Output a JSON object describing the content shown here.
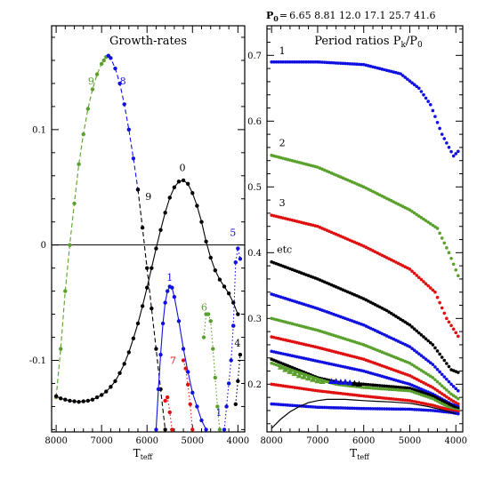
{
  "header": {
    "p0_label": "P",
    "p0_sub": "0",
    "p0_eq": "=",
    "p0_values": "6.65  8.81  12.0  17.1  25.7  41.6"
  },
  "colors": {
    "black": "#000000",
    "blue": "#1010e0",
    "green": "#5aa02c",
    "red": "#e01010"
  },
  "chart_data": [
    {
      "type": "line",
      "title": "Growth-rates",
      "xlabel": "T",
      "xlabel_sub": "teff",
      "xlim": [
        8100,
        3850
      ],
      "ylim": [
        -0.162,
        0.19
      ],
      "xticks": [
        8000,
        7000,
        6000,
        5000,
        4000
      ],
      "yticks": [
        0.1,
        0,
        -0.1
      ],
      "ytick_labels": [
        "0.1",
        "0",
        "-0.1"
      ],
      "zero_line": true,
      "series": [
        {
          "color": "#5aa02c",
          "style": "dashed",
          "name": "9",
          "x": [
            8000,
            7900,
            7800,
            7700,
            7600,
            7500,
            7400,
            7300,
            7200,
            7100,
            7000,
            6950,
            6900,
            6850
          ],
          "y": [
            -0.132,
            -0.09,
            -0.04,
            0.0,
            0.036,
            0.07,
            0.096,
            0.118,
            0.135,
            0.148,
            0.157,
            0.16,
            0.163,
            0.164
          ]
        },
        {
          "color": "#1010e0",
          "style": "dashed",
          "name": "8",
          "x": [
            6850,
            6800,
            6700,
            6600,
            6500,
            6400,
            6300,
            6200
          ],
          "y": [
            0.164,
            0.162,
            0.153,
            0.14,
            0.122,
            0.1,
            0.075,
            0.048
          ]
        },
        {
          "color": "#000000",
          "style": "dashed",
          "name": "9",
          "x": [
            6200,
            6100,
            6000,
            5900,
            5800,
            5700,
            5600
          ],
          "y": [
            0.048,
            0.015,
            -0.02,
            -0.055,
            -0.09,
            -0.125,
            -0.16
          ]
        },
        {
          "color": "#000000",
          "style": "solid",
          "name": "0",
          "x": [
            8000,
            7900,
            7800,
            7700,
            7600,
            7500,
            7400,
            7300,
            7200,
            7100,
            7000,
            6900,
            6800,
            6700,
            6600,
            6500,
            6400,
            6300,
            6200,
            6100,
            6000,
            5900,
            5800,
            5700,
            5600,
            5500,
            5400,
            5300,
            5200,
            5100,
            5000,
            4900,
            4800,
            4700,
            4600,
            4500,
            4400,
            4300,
            4200,
            4100,
            4000
          ],
          "y": [
            -0.131,
            -0.133,
            -0.134,
            -0.135,
            -0.1355,
            -0.136,
            -0.1355,
            -0.135,
            -0.134,
            -0.132,
            -0.13,
            -0.127,
            -0.123,
            -0.118,
            -0.111,
            -0.103,
            -0.093,
            -0.081,
            -0.068,
            -0.053,
            -0.037,
            -0.02,
            -0.003,
            0.013,
            0.028,
            0.041,
            0.05,
            0.055,
            0.056,
            0.053,
            0.045,
            0.034,
            0.02,
            0.003,
            -0.011,
            -0.022,
            -0.03,
            -0.036,
            -0.042,
            -0.05,
            -0.06
          ]
        },
        {
          "color": "#1010e0",
          "style": "solid",
          "name": "1",
          "x": [
            5800,
            5750,
            5700,
            5650,
            5600,
            5550,
            5500,
            5450,
            5400,
            5300,
            5200,
            5100,
            5000,
            4900,
            4800,
            4700
          ],
          "y": [
            -0.16,
            -0.125,
            -0.095,
            -0.068,
            -0.05,
            -0.04,
            -0.036,
            -0.037,
            -0.045,
            -0.066,
            -0.09,
            -0.11,
            -0.128,
            -0.14,
            -0.152,
            -0.16
          ]
        },
        {
          "color": "#e01010",
          "style": "dotted",
          "name": "7",
          "x": [
            5200,
            5150,
            5100,
            5050,
            5000
          ],
          "y": [
            -0.1,
            -0.107,
            -0.121,
            -0.138,
            -0.16
          ]
        },
        {
          "color": "#e01010",
          "style": "dotted",
          "name": "",
          "x": [
            5600,
            5550,
            5500,
            5450
          ],
          "y": [
            -0.135,
            -0.132,
            -0.145,
            -0.16
          ]
        },
        {
          "color": "#5aa02c",
          "style": "dotted",
          "name": "6",
          "x": [
            4750,
            4700,
            4650,
            4600,
            4550,
            4500,
            4450,
            4400
          ],
          "y": [
            -0.08,
            -0.06,
            -0.06,
            -0.066,
            -0.09,
            -0.115,
            -0.14,
            -0.16
          ]
        },
        {
          "color": "#1010e0",
          "style": "dotted",
          "name": "5",
          "x": [
            4100,
            4050,
            4000,
            3950
          ],
          "y": [
            -0.07,
            -0.015,
            -0.003,
            -0.012
          ]
        },
        {
          "color": "#1010e0",
          "style": "dotted",
          "name": "1",
          "x": [
            4300,
            4250,
            4200,
            4150,
            4100
          ],
          "y": [
            -0.16,
            -0.14,
            -0.12,
            -0.1,
            -0.07
          ]
        },
        {
          "color": "#000000",
          "style": "dotted",
          "name": "4",
          "x": [
            4050,
            4000,
            3950
          ],
          "y": [
            -0.138,
            -0.118,
            -0.095
          ]
        }
      ],
      "labels": [
        {
          "text": "9",
          "color": "#5aa02c",
          "x": 7230,
          "y": 0.139
        },
        {
          "text": "8",
          "color": "#1010e0",
          "x": 6530,
          "y": 0.139
        },
        {
          "text": "9",
          "color": "#000000",
          "x": 5970,
          "y": 0.039
        },
        {
          "text": "0",
          "color": "#000000",
          "x": 5220,
          "y": 0.064
        },
        {
          "text": "5",
          "color": "#1010e0",
          "x": 4110,
          "y": 0.008
        },
        {
          "text": "1",
          "color": "#1010e0",
          "x": 5500,
          "y": -0.031
        },
        {
          "text": "6",
          "color": "#5aa02c",
          "x": 4740,
          "y": -0.057
        },
        {
          "text": "7",
          "color": "#e01010",
          "x": 5430,
          "y": -0.103
        },
        {
          "text": "4",
          "color": "#000000",
          "x": 4010,
          "y": -0.088
        },
        {
          "text": "1",
          "color": "#1010e0",
          "x": 4420,
          "y": -0.148
        }
      ]
    },
    {
      "type": "scatter",
      "title": "Period ratios P",
      "title_sub": "k",
      "title_end": "/P",
      "title_end_sub": "0",
      "xlabel": "T",
      "xlabel_sub": "teff",
      "xlim": [
        8100,
        3850
      ],
      "ylim": [
        0.1275,
        0.745
      ],
      "xticks": [
        8000,
        7000,
        6000,
        5000,
        4000
      ],
      "yticks": [
        0.7,
        0.6,
        0.5,
        0.4,
        0.3,
        0.2
      ],
      "ytick_labels": [
        "0.7",
        "0.6",
        "0.5",
        "0.4",
        "0.3",
        "0.2"
      ],
      "series": [
        {
          "color": "#1010e0",
          "knots_x": [
            8000,
            7000,
            6000,
            5200,
            4800,
            4550,
            4300,
            4050,
            3950
          ],
          "knots_y": [
            0.69,
            0.69,
            0.686,
            0.672,
            0.65,
            0.625,
            0.58,
            0.547,
            0.554
          ]
        },
        {
          "color": "#5aa02c",
          "knots_x": [
            8000,
            7000,
            6000,
            5000,
            4400,
            4150,
            3950
          ],
          "knots_y": [
            0.548,
            0.53,
            0.5,
            0.465,
            0.437,
            0.4,
            0.365
          ]
        },
        {
          "color": "#e01010",
          "knots_x": [
            8000,
            7000,
            6000,
            5000,
            4450,
            4200,
            3950
          ],
          "knots_y": [
            0.457,
            0.44,
            0.41,
            0.375,
            0.34,
            0.3,
            0.273
          ]
        },
        {
          "color": "#000000",
          "knots_x": [
            8000,
            7000,
            6000,
            5500,
            5000,
            4500,
            4100,
            3950
          ],
          "knots_y": [
            0.386,
            0.36,
            0.33,
            0.312,
            0.29,
            0.26,
            0.222,
            0.218
          ]
        },
        {
          "color": "#1010e0",
          "knots_x": [
            8000,
            7000,
            6000,
            5000,
            4500,
            4100,
            3950
          ],
          "knots_y": [
            0.337,
            0.315,
            0.29,
            0.257,
            0.23,
            0.2,
            0.19
          ]
        },
        {
          "color": "#5aa02c",
          "knots_x": [
            8000,
            7000,
            6000,
            5000,
            4500,
            4100,
            3950
          ],
          "knots_y": [
            0.3,
            0.282,
            0.26,
            0.232,
            0.21,
            0.185,
            0.178
          ]
        },
        {
          "color": "#e01010",
          "knots_x": [
            8000,
            7000,
            6000,
            5000,
            4500,
            4100,
            3950
          ],
          "knots_y": [
            0.272,
            0.256,
            0.238,
            0.213,
            0.195,
            0.176,
            0.17
          ]
        },
        {
          "color": "#1010e0",
          "knots_x": [
            8000,
            7000,
            6000,
            5000,
            4500,
            4100,
            3950
          ],
          "knots_y": [
            0.25,
            0.235,
            0.22,
            0.2,
            0.185,
            0.17,
            0.166
          ]
        },
        {
          "color": "#000000",
          "knots_x": [
            8000,
            7500,
            7000,
            6500,
            6000,
            5000,
            4500,
            4100,
            3950
          ],
          "knots_y": [
            0.238,
            0.224,
            0.21,
            0.202,
            0.2,
            0.194,
            0.182,
            0.168,
            0.163
          ]
        },
        {
          "color": "#5aa02c",
          "knots_x": [
            8000,
            7500,
            7000,
            6600,
            6000,
            5000,
            4500,
            4100,
            3950
          ],
          "knots_y": [
            0.232,
            0.22,
            0.208,
            0.2,
            0.195,
            0.19,
            0.178,
            0.163,
            0.16
          ]
        },
        {
          "color": "#e01010",
          "knots_x": [
            8000,
            7000,
            6000,
            5000,
            4500,
            4100,
            3950
          ],
          "knots_y": [
            0.2,
            0.19,
            0.182,
            0.175,
            0.168,
            0.16,
            0.158
          ]
        },
        {
          "color": "#1010e0",
          "knots_x": [
            8000,
            7000,
            6000,
            5000,
            4500,
            4100,
            3950
          ],
          "knots_y": [
            0.17,
            0.165,
            0.163,
            0.162,
            0.16,
            0.157,
            0.155
          ]
        }
      ],
      "triangles": [
        {
          "color": "#5aa02c",
          "x": [
            7800,
            7700,
            7600,
            7500,
            7400,
            7300,
            7200,
            7100,
            7000,
            6900
          ],
          "y": [
            0.226,
            0.222,
            0.219,
            0.216,
            0.213,
            0.211,
            0.209,
            0.207,
            0.205,
            0.204
          ]
        },
        {
          "color": "#1010e0",
          "x": [
            6700,
            6600,
            6500,
            6400,
            6300
          ],
          "y": [
            0.204,
            0.204,
            0.203,
            0.203,
            0.202
          ]
        },
        {
          "color": "#000000",
          "x": [
            6200,
            6100
          ],
          "y": [
            0.201,
            0.2
          ]
        }
      ],
      "boundary": {
        "x": [
          8000,
          7800,
          7600,
          7400,
          7200,
          7000,
          6800,
          6600,
          6400,
          6200,
          6000,
          5700,
          5400,
          5000,
          4600,
          4300,
          4100,
          4000
        ],
        "y": [
          0.133,
          0.147,
          0.158,
          0.166,
          0.172,
          0.175,
          0.177,
          0.177,
          0.177,
          0.176,
          0.175,
          0.174,
          0.173,
          0.171,
          0.166,
          0.161,
          0.157,
          0.155
        ]
      },
      "labels": [
        {
          "text": "1",
          "color": "#000000",
          "x": 7770,
          "y": 0.702
        },
        {
          "text": "2",
          "color": "#000000",
          "x": 7770,
          "y": 0.562
        },
        {
          "text": "3",
          "color": "#000000",
          "x": 7770,
          "y": 0.471
        },
        {
          "text": "etc",
          "color": "#000000",
          "x": 7720,
          "y": 0.4
        }
      ]
    }
  ]
}
